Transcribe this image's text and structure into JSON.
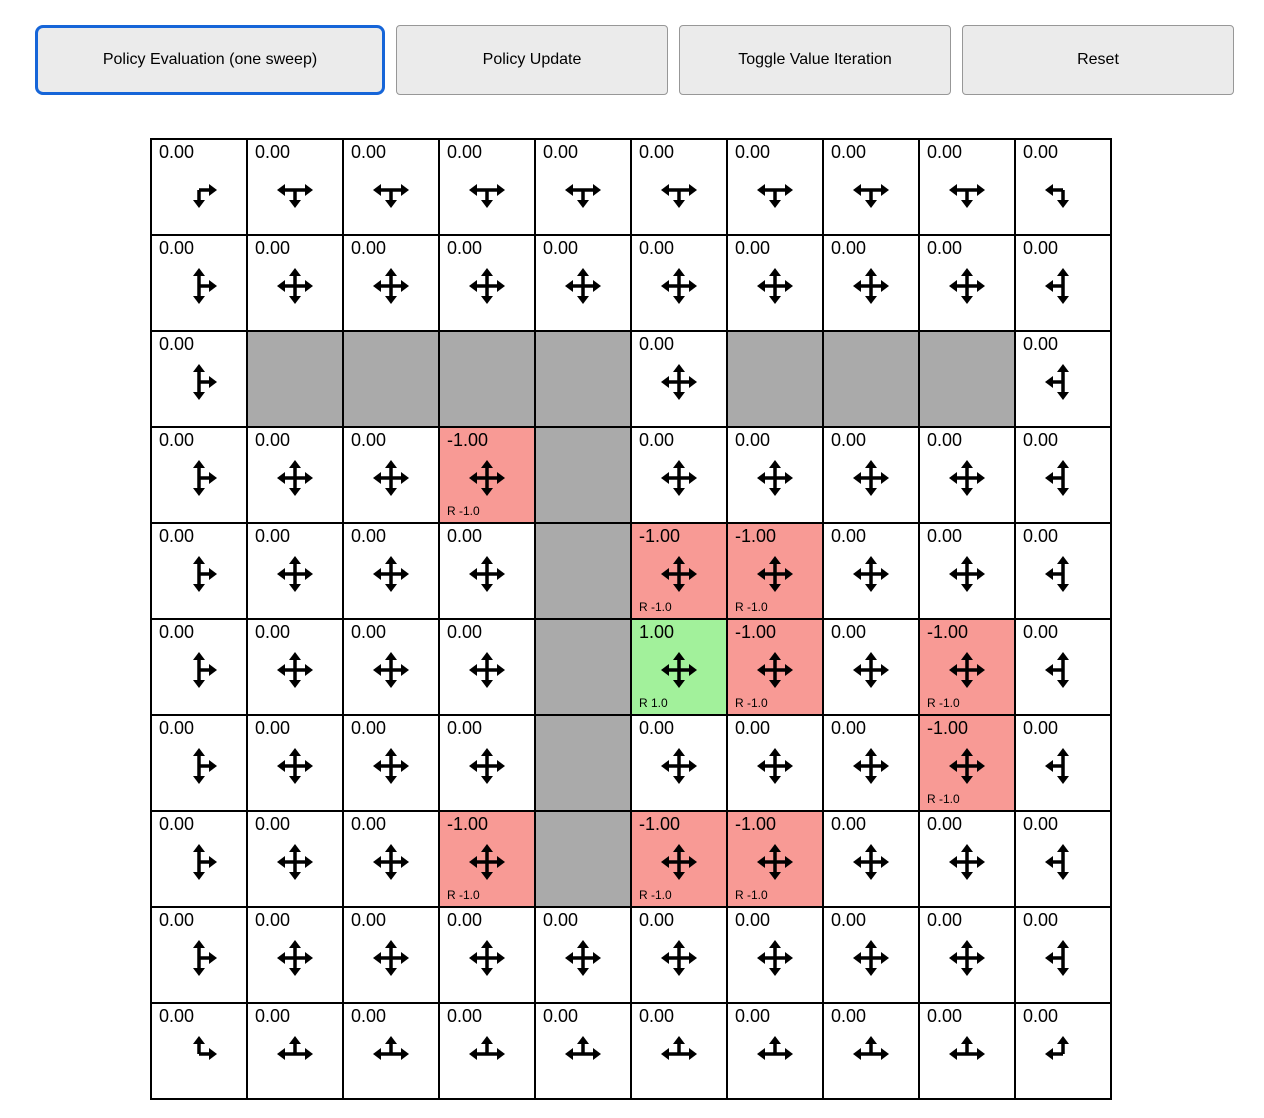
{
  "toolbar": {
    "buttons": [
      {
        "label": "Policy Evaluation (one sweep)",
        "active": true
      },
      {
        "label": "Policy Update",
        "active": false
      },
      {
        "label": "Toggle Value Iteration",
        "active": false
      },
      {
        "label": "Reset",
        "active": false
      }
    ]
  },
  "colors": {
    "wall": "#aaaaaa",
    "negative": "#f89a95",
    "positive": "#a2f19b",
    "active_button_border": "#1665d8",
    "cell_border": "#000000"
  },
  "grid": {
    "rows_count": 10,
    "cols_count": 10,
    "rows": [
      [
        {
          "type": "normal",
          "value": "0.00",
          "dirs": "DR"
        },
        {
          "type": "normal",
          "value": "0.00",
          "dirs": "DLR"
        },
        {
          "type": "normal",
          "value": "0.00",
          "dirs": "DLR"
        },
        {
          "type": "normal",
          "value": "0.00",
          "dirs": "DLR"
        },
        {
          "type": "normal",
          "value": "0.00",
          "dirs": "DLR"
        },
        {
          "type": "normal",
          "value": "0.00",
          "dirs": "DLR"
        },
        {
          "type": "normal",
          "value": "0.00",
          "dirs": "DLR"
        },
        {
          "type": "normal",
          "value": "0.00",
          "dirs": "DLR"
        },
        {
          "type": "normal",
          "value": "0.00",
          "dirs": "DLR"
        },
        {
          "type": "normal",
          "value": "0.00",
          "dirs": "DL"
        }
      ],
      [
        {
          "type": "normal",
          "value": "0.00",
          "dirs": "UDR"
        },
        {
          "type": "normal",
          "value": "0.00",
          "dirs": "UDLR"
        },
        {
          "type": "normal",
          "value": "0.00",
          "dirs": "UDLR"
        },
        {
          "type": "normal",
          "value": "0.00",
          "dirs": "UDLR"
        },
        {
          "type": "normal",
          "value": "0.00",
          "dirs": "UDLR"
        },
        {
          "type": "normal",
          "value": "0.00",
          "dirs": "UDLR"
        },
        {
          "type": "normal",
          "value": "0.00",
          "dirs": "UDLR"
        },
        {
          "type": "normal",
          "value": "0.00",
          "dirs": "UDLR"
        },
        {
          "type": "normal",
          "value": "0.00",
          "dirs": "UDLR"
        },
        {
          "type": "normal",
          "value": "0.00",
          "dirs": "UDL"
        }
      ],
      [
        {
          "type": "normal",
          "value": "0.00",
          "dirs": "UDR"
        },
        {
          "type": "wall"
        },
        {
          "type": "wall"
        },
        {
          "type": "wall"
        },
        {
          "type": "wall"
        },
        {
          "type": "normal",
          "value": "0.00",
          "dirs": "UDLR"
        },
        {
          "type": "wall"
        },
        {
          "type": "wall"
        },
        {
          "type": "wall"
        },
        {
          "type": "normal",
          "value": "0.00",
          "dirs": "UDL"
        }
      ],
      [
        {
          "type": "normal",
          "value": "0.00",
          "dirs": "UDR"
        },
        {
          "type": "normal",
          "value": "0.00",
          "dirs": "UDLR"
        },
        {
          "type": "normal",
          "value": "0.00",
          "dirs": "UDLR"
        },
        {
          "type": "negative",
          "value": "-1.00",
          "reward": "R -1.0",
          "dirs": "UDLR"
        },
        {
          "type": "wall"
        },
        {
          "type": "normal",
          "value": "0.00",
          "dirs": "UDLR"
        },
        {
          "type": "normal",
          "value": "0.00",
          "dirs": "UDLR"
        },
        {
          "type": "normal",
          "value": "0.00",
          "dirs": "UDLR"
        },
        {
          "type": "normal",
          "value": "0.00",
          "dirs": "UDLR"
        },
        {
          "type": "normal",
          "value": "0.00",
          "dirs": "UDL"
        }
      ],
      [
        {
          "type": "normal",
          "value": "0.00",
          "dirs": "UDR"
        },
        {
          "type": "normal",
          "value": "0.00",
          "dirs": "UDLR"
        },
        {
          "type": "normal",
          "value": "0.00",
          "dirs": "UDLR"
        },
        {
          "type": "normal",
          "value": "0.00",
          "dirs": "UDLR"
        },
        {
          "type": "wall"
        },
        {
          "type": "negative",
          "value": "-1.00",
          "reward": "R -1.0",
          "dirs": "UDLR"
        },
        {
          "type": "negative",
          "value": "-1.00",
          "reward": "R -1.0",
          "dirs": "UDLR"
        },
        {
          "type": "normal",
          "value": "0.00",
          "dirs": "UDLR"
        },
        {
          "type": "normal",
          "value": "0.00",
          "dirs": "UDLR"
        },
        {
          "type": "normal",
          "value": "0.00",
          "dirs": "UDL"
        }
      ],
      [
        {
          "type": "normal",
          "value": "0.00",
          "dirs": "UDR"
        },
        {
          "type": "normal",
          "value": "0.00",
          "dirs": "UDLR"
        },
        {
          "type": "normal",
          "value": "0.00",
          "dirs": "UDLR"
        },
        {
          "type": "normal",
          "value": "0.00",
          "dirs": "UDLR"
        },
        {
          "type": "wall"
        },
        {
          "type": "positive",
          "value": "1.00",
          "reward": "R 1.0",
          "dirs": "UDLR"
        },
        {
          "type": "negative",
          "value": "-1.00",
          "reward": "R -1.0",
          "dirs": "UDLR"
        },
        {
          "type": "normal",
          "value": "0.00",
          "dirs": "UDLR"
        },
        {
          "type": "negative",
          "value": "-1.00",
          "reward": "R -1.0",
          "dirs": "UDLR"
        },
        {
          "type": "normal",
          "value": "0.00",
          "dirs": "UDL"
        }
      ],
      [
        {
          "type": "normal",
          "value": "0.00",
          "dirs": "UDR"
        },
        {
          "type": "normal",
          "value": "0.00",
          "dirs": "UDLR"
        },
        {
          "type": "normal",
          "value": "0.00",
          "dirs": "UDLR"
        },
        {
          "type": "normal",
          "value": "0.00",
          "dirs": "UDLR"
        },
        {
          "type": "wall"
        },
        {
          "type": "normal",
          "value": "0.00",
          "dirs": "UDLR"
        },
        {
          "type": "normal",
          "value": "0.00",
          "dirs": "UDLR"
        },
        {
          "type": "normal",
          "value": "0.00",
          "dirs": "UDLR"
        },
        {
          "type": "negative",
          "value": "-1.00",
          "reward": "R -1.0",
          "dirs": "UDLR"
        },
        {
          "type": "normal",
          "value": "0.00",
          "dirs": "UDL"
        }
      ],
      [
        {
          "type": "normal",
          "value": "0.00",
          "dirs": "UDR"
        },
        {
          "type": "normal",
          "value": "0.00",
          "dirs": "UDLR"
        },
        {
          "type": "normal",
          "value": "0.00",
          "dirs": "UDLR"
        },
        {
          "type": "negative",
          "value": "-1.00",
          "reward": "R -1.0",
          "dirs": "UDLR"
        },
        {
          "type": "wall"
        },
        {
          "type": "negative",
          "value": "-1.00",
          "reward": "R -1.0",
          "dirs": "UDLR"
        },
        {
          "type": "negative",
          "value": "-1.00",
          "reward": "R -1.0",
          "dirs": "UDLR"
        },
        {
          "type": "normal",
          "value": "0.00",
          "dirs": "UDLR"
        },
        {
          "type": "normal",
          "value": "0.00",
          "dirs": "UDLR"
        },
        {
          "type": "normal",
          "value": "0.00",
          "dirs": "UDL"
        }
      ],
      [
        {
          "type": "normal",
          "value": "0.00",
          "dirs": "UDR"
        },
        {
          "type": "normal",
          "value": "0.00",
          "dirs": "UDLR"
        },
        {
          "type": "normal",
          "value": "0.00",
          "dirs": "UDLR"
        },
        {
          "type": "normal",
          "value": "0.00",
          "dirs": "UDLR"
        },
        {
          "type": "normal",
          "value": "0.00",
          "dirs": "UDLR"
        },
        {
          "type": "normal",
          "value": "0.00",
          "dirs": "UDLR"
        },
        {
          "type": "normal",
          "value": "0.00",
          "dirs": "UDLR"
        },
        {
          "type": "normal",
          "value": "0.00",
          "dirs": "UDLR"
        },
        {
          "type": "normal",
          "value": "0.00",
          "dirs": "UDLR"
        },
        {
          "type": "normal",
          "value": "0.00",
          "dirs": "UDL"
        }
      ],
      [
        {
          "type": "normal",
          "value": "0.00",
          "dirs": "UR"
        },
        {
          "type": "normal",
          "value": "0.00",
          "dirs": "ULR"
        },
        {
          "type": "normal",
          "value": "0.00",
          "dirs": "ULR"
        },
        {
          "type": "normal",
          "value": "0.00",
          "dirs": "ULR"
        },
        {
          "type": "normal",
          "value": "0.00",
          "dirs": "ULR"
        },
        {
          "type": "normal",
          "value": "0.00",
          "dirs": "ULR"
        },
        {
          "type": "normal",
          "value": "0.00",
          "dirs": "ULR"
        },
        {
          "type": "normal",
          "value": "0.00",
          "dirs": "ULR"
        },
        {
          "type": "normal",
          "value": "0.00",
          "dirs": "ULR"
        },
        {
          "type": "normal",
          "value": "0.00",
          "dirs": "UL"
        }
      ]
    ]
  }
}
